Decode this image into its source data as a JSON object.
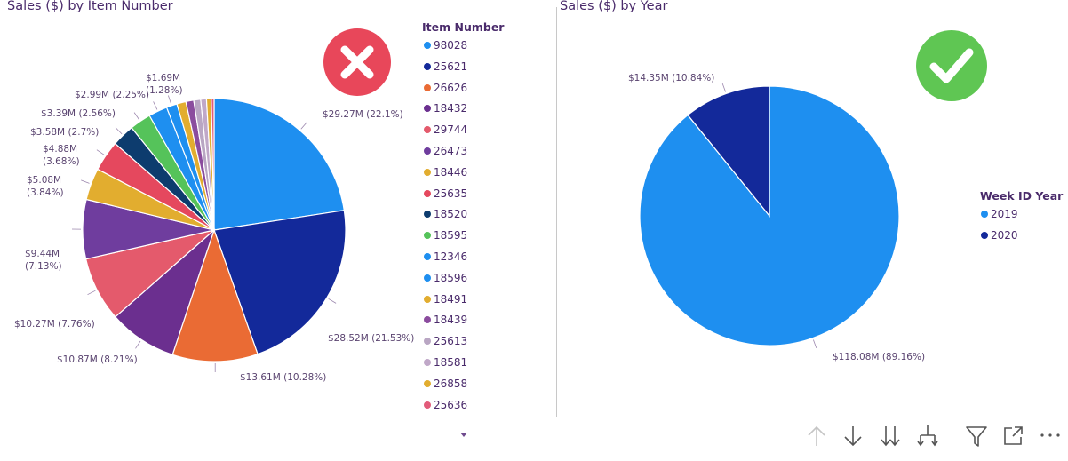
{
  "charts": [
    {
      "title": "Sales ($) by Item Number",
      "legend_title": "Item Number",
      "status_icon": "error-x-icon",
      "status_color": "#e8475a"
    },
    {
      "title": "Sales ($) by Year",
      "legend_title": "Week ID Year",
      "status_icon": "check-icon",
      "status_color": "#5fc653"
    }
  ],
  "legend_more_icon": "triangle-down-icon",
  "toolbar_icons": [
    "arrow-up-icon",
    "arrow-down-icon",
    "double-arrow-down-icon",
    "expand-hierarchy-icon",
    "filter-icon",
    "focus-mode-icon",
    "more-options-icon"
  ],
  "chart_data": [
    {
      "type": "pie",
      "title": "Sales ($) by Item Number",
      "legend_title": "Item Number",
      "categories": [
        "98028",
        "25621",
        "26626",
        "18432",
        "29744",
        "26473",
        "18446",
        "25635",
        "18520",
        "18595",
        "12346",
        "18596",
        "18491",
        "18439",
        "25613",
        "18581",
        "26858",
        "25636"
      ],
      "values": [
        29.27,
        28.52,
        13.61,
        10.87,
        10.27,
        9.44,
        5.08,
        4.88,
        3.58,
        3.39,
        2.99,
        1.69,
        1.45,
        1.25,
        1.1,
        0.92,
        0.75,
        0.45
      ],
      "colors": [
        "#1e8ff0",
        "#13299a",
        "#ea6b34",
        "#6b2f8f",
        "#e45a6c",
        "#6f3d9e",
        "#e2ad2f",
        "#e5485e",
        "#0d3c6e",
        "#55c35a",
        "#1e8ff0",
        "#1e8ff0",
        "#e2ad2f",
        "#8b4c9e",
        "#b9a6c3",
        "#c0a8c8",
        "#e2ad2f",
        "#e25b7a"
      ],
      "data_labels": [
        {
          "index": 0,
          "text": "$29.27M (22.1%)"
        },
        {
          "index": 1,
          "text": "$28.52M (21.53%)"
        },
        {
          "index": 2,
          "text": "$13.61M (10.28%)"
        },
        {
          "index": 3,
          "text": "$10.87M (8.21%)"
        },
        {
          "index": 4,
          "text": "$10.27M (7.76%)"
        },
        {
          "index": 5,
          "text": "$9.44M (7.13%)"
        },
        {
          "index": 6,
          "text": "$5.08M (3.84%)"
        },
        {
          "index": 7,
          "text": "$4.88M (3.68%)"
        },
        {
          "index": 8,
          "text": "$3.58M (2.7%)"
        },
        {
          "index": 9,
          "text": "$3.39M (2.56%)"
        },
        {
          "index": 10,
          "text": "$2.99M (2.25%)"
        },
        {
          "index": 11,
          "text": "$1.69M (1.28%)"
        }
      ]
    },
    {
      "type": "pie",
      "title": "Sales ($) by Year",
      "legend_title": "Week ID Year",
      "categories": [
        "2019",
        "2020"
      ],
      "values": [
        118.08,
        14.35
      ],
      "colors": [
        "#1e8ff0",
        "#13299a"
      ],
      "data_labels": [
        {
          "index": 0,
          "text": "$118.08M (89.16%)"
        },
        {
          "index": 1,
          "text": "$14.35M (10.84%)"
        }
      ]
    }
  ]
}
